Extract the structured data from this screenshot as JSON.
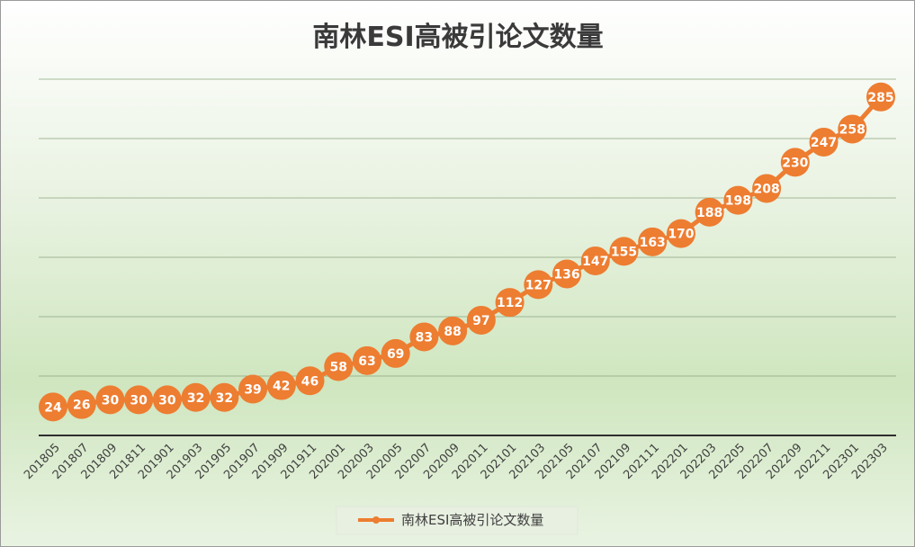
{
  "chart_data": {
    "type": "line",
    "title": "南林ESI高被引论文数量",
    "categories": [
      "201805",
      "201807",
      "201809",
      "201811",
      "201901",
      "201903",
      "201905",
      "201907",
      "201909",
      "201911",
      "202001",
      "202003",
      "202005",
      "202007",
      "202009",
      "202011",
      "202101",
      "202103",
      "202105",
      "202107",
      "202109",
      "202111",
      "202201",
      "202203",
      "202205",
      "202207",
      "202209",
      "202211",
      "202301",
      "202303"
    ],
    "series": [
      {
        "name": "南林ESI高被引论文数量",
        "values": [
          24,
          26,
          30,
          30,
          30,
          32,
          32,
          39,
          42,
          46,
          58,
          63,
          69,
          83,
          88,
          97,
          112,
          127,
          136,
          147,
          155,
          163,
          170,
          188,
          198,
          208,
          230,
          247,
          258,
          285
        ],
        "color": "#ED7D31"
      }
    ],
    "ylim": [
      0,
      300
    ],
    "grid": true,
    "legend": "bottom",
    "data_labels": true
  }
}
